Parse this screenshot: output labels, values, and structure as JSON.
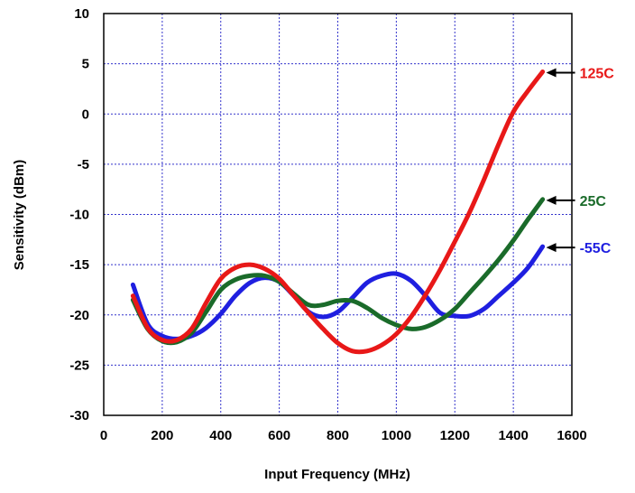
{
  "chart_data": {
    "type": "line",
    "xlabel": "Input Frequency (MHz)",
    "ylabel": "Sensitivity (dBm)",
    "xlim": [
      0,
      1600
    ],
    "ylim": [
      -30,
      10
    ],
    "x_ticks": [
      0,
      200,
      400,
      600,
      800,
      1000,
      1200,
      1400,
      1600
    ],
    "y_ticks": [
      10,
      5,
      0,
      -5,
      -10,
      -15,
      -20,
      -25,
      -30
    ],
    "grid": true,
    "series": [
      {
        "name": "-55C",
        "color": "#1f1fe0",
        "x": [
          100,
          150,
          200,
          250,
          300,
          350,
          400,
          450,
          500,
          550,
          600,
          650,
          700,
          750,
          800,
          850,
          900,
          950,
          1000,
          1050,
          1100,
          1150,
          1200,
          1250,
          1300,
          1350,
          1400,
          1450,
          1500
        ],
        "y": [
          -17.0,
          -20.9,
          -22.1,
          -22.4,
          -22.1,
          -21.3,
          -19.9,
          -18.1,
          -16.8,
          -16.3,
          -16.7,
          -18.1,
          -19.7,
          -20.2,
          -19.7,
          -18.3,
          -16.8,
          -16.1,
          -15.9,
          -16.6,
          -18.1,
          -19.8,
          -20.1,
          -20.1,
          -19.4,
          -18.1,
          -16.8,
          -15.3,
          -13.2
        ]
      },
      {
        "name": "25C",
        "color": "#1a6b2a",
        "x": [
          100,
          150,
          200,
          250,
          300,
          350,
          400,
          450,
          500,
          550,
          600,
          650,
          700,
          750,
          800,
          850,
          900,
          950,
          1000,
          1050,
          1100,
          1150,
          1200,
          1250,
          1300,
          1350,
          1400,
          1450,
          1500
        ],
        "y": [
          -18.5,
          -21.4,
          -22.6,
          -22.7,
          -21.8,
          -19.7,
          -17.5,
          -16.5,
          -16.1,
          -16.1,
          -16.7,
          -17.9,
          -19.0,
          -19.0,
          -18.6,
          -18.6,
          -19.3,
          -20.3,
          -21.0,
          -21.4,
          -21.2,
          -20.5,
          -19.4,
          -17.8,
          -16.2,
          -14.5,
          -12.6,
          -10.5,
          -8.5
        ]
      },
      {
        "name": "125C",
        "color": "#e81818",
        "x": [
          100,
          150,
          200,
          250,
          300,
          350,
          400,
          450,
          500,
          550,
          600,
          650,
          700,
          750,
          800,
          850,
          900,
          950,
          1000,
          1050,
          1100,
          1150,
          1200,
          1250,
          1300,
          1350,
          1400,
          1450,
          1500
        ],
        "y": [
          -18.1,
          -21.3,
          -22.5,
          -22.5,
          -21.4,
          -18.8,
          -16.4,
          -15.3,
          -15.0,
          -15.4,
          -16.4,
          -18.1,
          -19.8,
          -21.4,
          -22.8,
          -23.6,
          -23.6,
          -23.0,
          -21.9,
          -20.2,
          -18.0,
          -15.5,
          -12.7,
          -9.8,
          -6.5,
          -3.0,
          0.2,
          2.3,
          4.2
        ]
      }
    ],
    "annotations": [
      {
        "label": "125C",
        "series": "125C",
        "color": "#e81818"
      },
      {
        "label": "25C",
        "series": "25C",
        "color": "#1a6b2a"
      },
      {
        "label": "-55C",
        "series": "-55C",
        "color": "#1f1fe0"
      }
    ]
  }
}
